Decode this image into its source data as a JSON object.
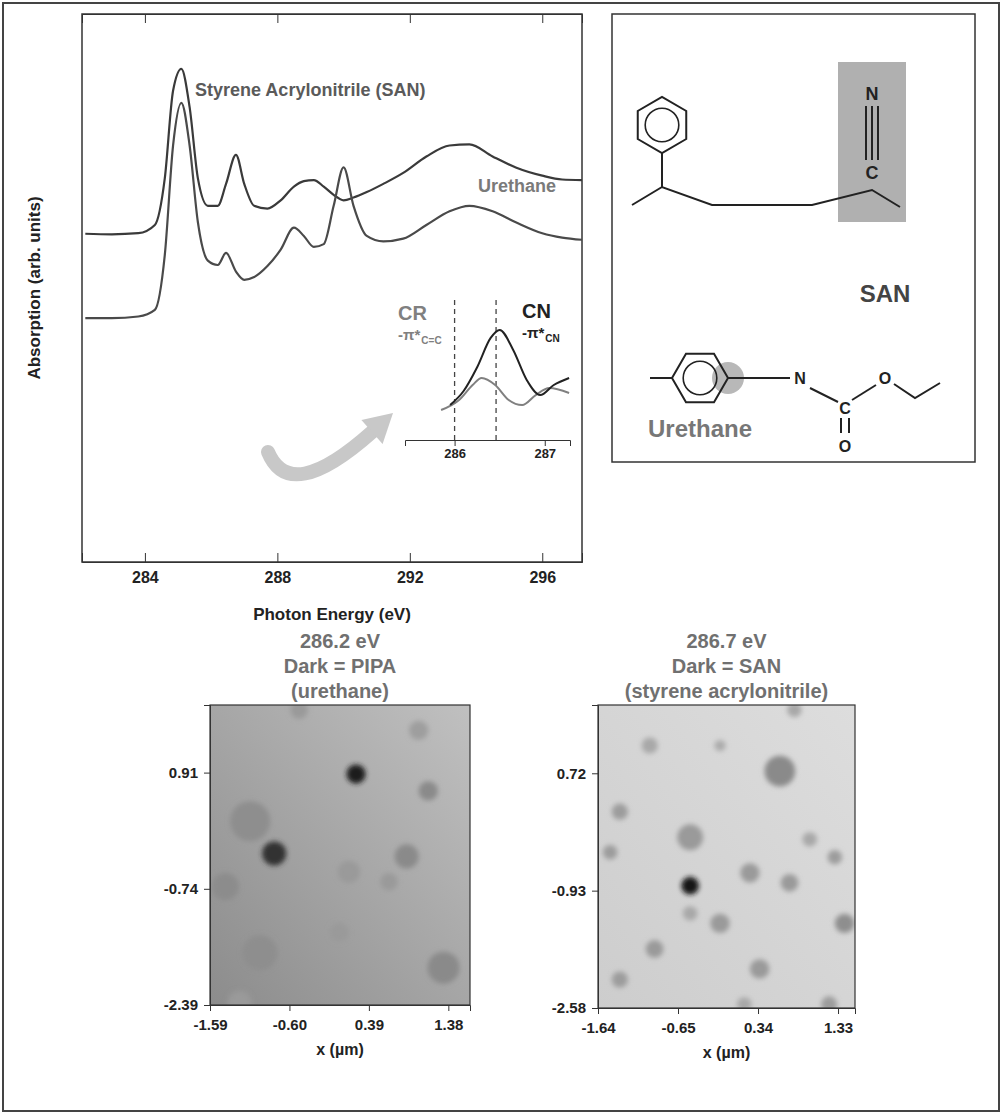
{
  "chart_data": [
    {
      "type": "line",
      "x_label": "Photon Energy (eV)",
      "y_label": "Absorption (arb. units)",
      "xlim": [
        282.1,
        297.2
      ],
      "xticks": [
        284,
        288,
        292,
        296
      ],
      "ylim": [
        0,
        10
      ],
      "tick_labels": "x",
      "x": [
        282.2,
        283,
        283.8,
        284.3,
        284.6,
        284.85,
        285.1,
        285.35,
        285.6,
        285.9,
        286.2,
        286.45,
        286.75,
        287.0,
        287.3,
        287.7,
        288.1,
        288.5,
        288.8,
        289.1,
        289.4,
        289.7,
        290.0,
        290.3,
        290.7,
        291.2,
        291.8,
        292.5,
        293.2,
        293.8,
        294.5,
        295.2,
        296.0,
        296.6,
        297.2
      ],
      "series": [
        {
          "name": "Styrene Acrylonitrile (SAN)",
          "color": "#3a3a3a",
          "values": [
            5.99,
            5.98,
            6.0,
            6.15,
            7.0,
            8.6,
            9.0,
            8.3,
            7.0,
            6.5,
            6.5,
            6.9,
            7.43,
            6.9,
            6.5,
            6.45,
            6.6,
            6.85,
            6.95,
            6.97,
            6.85,
            6.7,
            6.6,
            6.65,
            6.75,
            6.9,
            7.1,
            7.4,
            7.6,
            7.62,
            7.4,
            7.2,
            7.05,
            6.98,
            6.97
          ]
        },
        {
          "name": "Urethane",
          "color": "#4a4a4a",
          "values": [
            4.45,
            4.45,
            4.48,
            4.6,
            5.6,
            7.6,
            8.38,
            7.6,
            6.2,
            5.5,
            5.42,
            5.64,
            5.3,
            5.15,
            5.2,
            5.4,
            5.7,
            6.1,
            5.95,
            5.75,
            5.8,
            6.5,
            7.2,
            6.5,
            5.95,
            5.85,
            5.9,
            6.15,
            6.4,
            6.5,
            6.4,
            6.2,
            6.0,
            5.92,
            5.88
          ]
        }
      ]
    },
    {
      "type": "line",
      "xlim": [
        285.45,
        287.28
      ],
      "xticks": [
        286,
        287
      ],
      "ylim": [
        0,
        10
      ],
      "tick_labels": "x",
      "reference_lines": [
        286.0,
        286.46
      ],
      "series": [
        {
          "name": "CR",
          "label": "-π*",
          "label_sub": "C=C",
          "color": "#808080",
          "x": [
            285.85,
            286.05,
            286.2,
            286.3,
            286.45,
            286.6,
            286.75,
            286.9,
            287.05,
            287.27
          ],
          "values": [
            2.14,
            2.86,
            3.93,
            4.43,
            3.93,
            2.86,
            2.5,
            3.21,
            3.71,
            3.36
          ]
        },
        {
          "name": "CN",
          "label": "-π*",
          "label_sub": "CN",
          "color": "#222222",
          "x": [
            285.95,
            286.1,
            286.25,
            286.4,
            286.5,
            286.65,
            286.8,
            286.95,
            287.1,
            287.27
          ],
          "values": [
            2.5,
            3.5,
            5.2,
            7.29,
            7.86,
            6.43,
            4.29,
            3.21,
            3.93,
            4.43
          ]
        }
      ]
    },
    {
      "type": "scatter",
      "title": [
        "286.2 eV",
        "Dark = PIPA",
        "(urethane)"
      ],
      "x_label": "x (µm)",
      "xlim": [
        -1.59,
        1.65
      ],
      "xticks": [
        -1.59,
        {
          "value": -0.6,
          "label": "-0.60"
        },
        0.39,
        1.38
      ],
      "ylim": [
        -2.39,
        1.87
      ],
      "yticks": [
        0.91,
        -0.74,
        -2.39
      ],
      "x": [
        0.23,
        -0.79,
        1.13,
        0.86,
        -1.4,
        -0.97,
        -0.48,
        1.32,
        0.02,
        0.14,
        -1.09,
        0.64,
        1.01,
        -1.22
      ],
      "values": [
        0.89,
        -0.24,
        0.65,
        -0.28,
        -0.71,
        -1.65,
        1.8,
        -1.86,
        -1.36,
        -0.5,
        0.22,
        -0.64,
        1.51,
        -2.36
      ],
      "sizes": [
        0.12,
        0.15,
        0.12,
        0.15,
        0.17,
        0.22,
        0.11,
        0.2,
        0.12,
        0.14,
        0.25,
        0.11,
        0.12,
        0.15
      ],
      "colors": [
        "#1e1e1e",
        "#333333",
        "#8a8a8a",
        "#8a8a8a",
        "#8c8c8c",
        "#8e8e8e",
        "#9a9a9a",
        "#8a8a8a",
        "#9a9a9a",
        "#9a9a9a",
        "#8e8e8e",
        "#9a9a9a",
        "#9e9e9e",
        "#9a9a9a"
      ]
    },
    {
      "type": "scatter",
      "title": [
        "286.7 eV",
        "Dark = SAN",
        "(styrene acrylonitrile)"
      ],
      "x_label": "x (µm)",
      "xlim": [
        -1.64,
        1.54
      ],
      "xticks": [
        -1.64,
        -0.65,
        0.34,
        1.33
      ],
      "ylim": [
        -2.58,
        1.68
      ],
      "yticks": [
        0.72,
        -0.93,
        -2.58
      ],
      "x": [
        -0.5,
        0.61,
        -0.5,
        -1.37,
        -1.0,
        -0.13,
        0.79,
        -1.49,
        0.24,
        0.73,
        1.29,
        1.41,
        -0.13,
        -0.94,
        -1.37,
        0.36,
        1.22,
        -0.5,
        0.98,
        0.17
      ],
      "values": [
        -0.86,
        0.75,
        -0.18,
        0.18,
        1.11,
        1.11,
        1.61,
        -0.39,
        -0.68,
        -0.82,
        -0.46,
        -1.39,
        -1.39,
        -1.75,
        -2.18,
        -2.03,
        -2.53,
        -1.25,
        -0.21,
        -2.53
      ],
      "sizes": [
        0.11,
        0.19,
        0.16,
        0.1,
        0.1,
        0.07,
        0.09,
        0.09,
        0.12,
        0.11,
        0.09,
        0.12,
        0.12,
        0.11,
        0.1,
        0.12,
        0.1,
        0.09,
        0.09,
        0.09
      ],
      "colors": [
        "#151515",
        "#8a8a8a",
        "#9a9a9a",
        "#9c9c9c",
        "#a8a8a8",
        "#ababab",
        "#a8a8a8",
        "#9c9c9c",
        "#9a9a9a",
        "#9a9a9a",
        "#9c9c9c",
        "#8e8e8e",
        "#9a9a9a",
        "#9a9a9a",
        "#9c9c9c",
        "#9a9a9a",
        "#9c9c9c",
        "#a8a8a8",
        "#a8a8a8",
        "#a8a8a8"
      ]
    }
  ],
  "structures": [
    {
      "label": "SAN",
      "atoms": [
        "N",
        "C"
      ]
    },
    {
      "label": "Urethane",
      "atoms": [
        "N",
        "C",
        "O",
        "O"
      ]
    }
  ]
}
